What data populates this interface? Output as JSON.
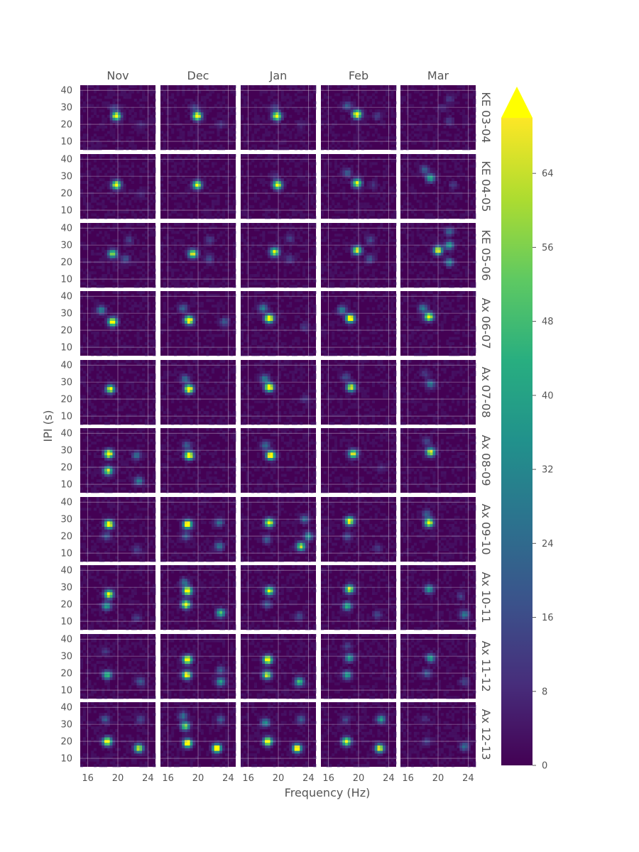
{
  "chart_data": {
    "type": "heatmap",
    "layout": "small-multiples grid",
    "xlabel": "Frequency (Hz)",
    "ylabel": "IPI (s)",
    "columns": [
      "Nov",
      "Dec",
      "Jan",
      "Feb",
      "Mar"
    ],
    "rows": [
      "KE 03-04",
      "KE 04-05",
      "KE 05-06",
      "Ax 06-07",
      "Ax 07-08",
      "Ax 08-09",
      "Ax 09-10",
      "Ax 10-11",
      "Ax 11-12",
      "Ax 12-13"
    ],
    "xlim": [
      15,
      25
    ],
    "ylim": [
      5,
      43
    ],
    "xticks": [
      16,
      20,
      24
    ],
    "yticks": [
      10,
      20,
      30,
      40
    ],
    "grid": true,
    "colormap": "viridis",
    "colorbar": {
      "min": 0,
      "max": 70,
      "extend": "max",
      "ticks": [
        0,
        8,
        16,
        24,
        32,
        40,
        48,
        56,
        64
      ],
      "extend_color": "#ffff00"
    },
    "colors": {
      "background": "#440154",
      "high": "#fde725",
      "saturated": "#ffff00",
      "text": "#555555"
    },
    "hotspots": [
      [
        [
          {
            "f": 19.8,
            "ipi": 25,
            "v": 80
          },
          {
            "f": 19.5,
            "ipi": 30,
            "v": 12
          },
          {
            "f": 23,
            "ipi": 20,
            "v": 6
          }
        ],
        [
          {
            "f": 19.9,
            "ipi": 25,
            "v": 85
          },
          {
            "f": 19.5,
            "ipi": 30,
            "v": 12
          },
          {
            "f": 23,
            "ipi": 20,
            "v": 8
          }
        ],
        [
          {
            "f": 19.8,
            "ipi": 25,
            "v": 80
          },
          {
            "f": 19.5,
            "ipi": 30,
            "v": 12
          },
          {
            "f": 23,
            "ipi": 20,
            "v": 6
          }
        ],
        [
          {
            "f": 19.8,
            "ipi": 26,
            "v": 85
          },
          {
            "f": 18.5,
            "ipi": 31,
            "v": 20
          },
          {
            "f": 22.5,
            "ipi": 25,
            "v": 12
          }
        ],
        [
          {
            "f": 21.5,
            "ipi": 35,
            "v": 10
          },
          {
            "f": 21.5,
            "ipi": 22,
            "v": 10
          },
          {
            "f": 20.5,
            "ipi": 30,
            "v": 6
          }
        ]
      ],
      [
        [
          {
            "f": 19.8,
            "ipi": 25,
            "v": 80
          },
          {
            "f": 23,
            "ipi": 20,
            "v": 5
          }
        ],
        [
          {
            "f": 19.9,
            "ipi": 25,
            "v": 72
          }
        ],
        [
          {
            "f": 19.9,
            "ipi": 25,
            "v": 78
          },
          {
            "f": 19.5,
            "ipi": 30,
            "v": 8
          }
        ],
        [
          {
            "f": 19.8,
            "ipi": 26,
            "v": 72
          },
          {
            "f": 18.5,
            "ipi": 32,
            "v": 20
          },
          {
            "f": 22,
            "ipi": 25,
            "v": 8
          }
        ],
        [
          {
            "f": 19,
            "ipi": 29,
            "v": 45
          },
          {
            "f": 18.2,
            "ipi": 34,
            "v": 20
          },
          {
            "f": 22,
            "ipi": 25,
            "v": 10
          }
        ]
      ],
      [
        [
          {
            "f": 19.3,
            "ipi": 25,
            "v": 60
          },
          {
            "f": 21,
            "ipi": 22,
            "v": 18
          },
          {
            "f": 21.5,
            "ipi": 33,
            "v": 12
          }
        ],
        [
          {
            "f": 19.3,
            "ipi": 25,
            "v": 72
          },
          {
            "f": 21.5,
            "ipi": 22,
            "v": 14
          },
          {
            "f": 21.5,
            "ipi": 33,
            "v": 12
          }
        ],
        [
          {
            "f": 19.5,
            "ipi": 26,
            "v": 72
          },
          {
            "f": 21.5,
            "ipi": 22,
            "v": 12
          },
          {
            "f": 21.5,
            "ipi": 34,
            "v": 12
          }
        ],
        [
          {
            "f": 19.8,
            "ipi": 27,
            "v": 72
          },
          {
            "f": 21.5,
            "ipi": 22,
            "v": 18
          },
          {
            "f": 21.5,
            "ipi": 33,
            "v": 14
          }
        ],
        [
          {
            "f": 20,
            "ipi": 27,
            "v": 75
          },
          {
            "f": 21.5,
            "ipi": 30,
            "v": 40
          },
          {
            "f": 21.5,
            "ipi": 20,
            "v": 30
          },
          {
            "f": 21.5,
            "ipi": 38,
            "v": 22
          }
        ]
      ],
      [
        [
          {
            "f": 19.3,
            "ipi": 25,
            "v": 85
          },
          {
            "f": 17.8,
            "ipi": 32,
            "v": 30
          }
        ],
        [
          {
            "f": 18.8,
            "ipi": 26,
            "v": 90
          },
          {
            "f": 18,
            "ipi": 33,
            "v": 22
          },
          {
            "f": 23.5,
            "ipi": 25,
            "v": 20
          }
        ],
        [
          {
            "f": 18.8,
            "ipi": 27,
            "v": 90
          },
          {
            "f": 18,
            "ipi": 33,
            "v": 30
          },
          {
            "f": 23.5,
            "ipi": 22,
            "v": 10
          }
        ],
        [
          {
            "f": 18.9,
            "ipi": 27,
            "v": 88
          },
          {
            "f": 17.8,
            "ipi": 32,
            "v": 30
          }
        ],
        [
          {
            "f": 18.8,
            "ipi": 28,
            "v": 80
          },
          {
            "f": 18,
            "ipi": 33,
            "v": 30
          }
        ]
      ],
      [
        [
          {
            "f": 19,
            "ipi": 26,
            "v": 72
          }
        ],
        [
          {
            "f": 18.8,
            "ipi": 26,
            "v": 90
          },
          {
            "f": 18.3,
            "ipi": 32,
            "v": 25
          }
        ],
        [
          {
            "f": 18.8,
            "ipi": 27,
            "v": 90
          },
          {
            "f": 18.2,
            "ipi": 32,
            "v": 30
          },
          {
            "f": 23.5,
            "ipi": 20,
            "v": 10
          }
        ],
        [
          {
            "f": 19,
            "ipi": 27,
            "v": 72
          },
          {
            "f": 18.3,
            "ipi": 33,
            "v": 16
          }
        ],
        [
          {
            "f": 19,
            "ipi": 29,
            "v": 28
          },
          {
            "f": 18.3,
            "ipi": 35,
            "v": 10
          }
        ]
      ],
      [
        [
          {
            "f": 18.8,
            "ipi": 28,
            "v": 88
          },
          {
            "f": 18.7,
            "ipi": 18,
            "v": 70
          },
          {
            "f": 22.5,
            "ipi": 27,
            "v": 25
          },
          {
            "f": 22.8,
            "ipi": 12,
            "v": 30
          }
        ],
        [
          {
            "f": 18.8,
            "ipi": 27,
            "v": 90
          },
          {
            "f": 18.5,
            "ipi": 33,
            "v": 20
          }
        ],
        [
          {
            "f": 19,
            "ipi": 27,
            "v": 90
          },
          {
            "f": 18.3,
            "ipi": 33,
            "v": 25
          }
        ],
        [
          {
            "f": 19.3,
            "ipi": 28,
            "v": 72
          },
          {
            "f": 23,
            "ipi": 20,
            "v": 8
          }
        ],
        [
          {
            "f": 19,
            "ipi": 29,
            "v": 72
          },
          {
            "f": 18.5,
            "ipi": 35,
            "v": 14
          }
        ]
      ],
      [
        [
          {
            "f": 18.8,
            "ipi": 27,
            "v": 88
          },
          {
            "f": 18.5,
            "ipi": 20,
            "v": 18
          },
          {
            "f": 22.5,
            "ipi": 12,
            "v": 12
          }
        ],
        [
          {
            "f": 18.6,
            "ipi": 27,
            "v": 90
          },
          {
            "f": 22.8,
            "ipi": 28,
            "v": 25
          },
          {
            "f": 22.8,
            "ipi": 14,
            "v": 28
          },
          {
            "f": 18.4,
            "ipi": 20,
            "v": 20
          }
        ],
        [
          {
            "f": 18.8,
            "ipi": 28,
            "v": 80
          },
          {
            "f": 23.5,
            "ipi": 30,
            "v": 25
          },
          {
            "f": 24,
            "ipi": 20,
            "v": 35
          },
          {
            "f": 23,
            "ipi": 14,
            "v": 65
          },
          {
            "f": 18.5,
            "ipi": 18,
            "v": 20
          }
        ],
        [
          {
            "f": 18.8,
            "ipi": 29,
            "v": 80
          },
          {
            "f": 18.5,
            "ipi": 20,
            "v": 16
          },
          {
            "f": 22.5,
            "ipi": 13,
            "v": 10
          }
        ],
        [
          {
            "f": 18.8,
            "ipi": 28,
            "v": 80
          },
          {
            "f": 18.5,
            "ipi": 33,
            "v": 20
          }
        ]
      ],
      [
        [
          {
            "f": 18.8,
            "ipi": 26,
            "v": 75
          },
          {
            "f": 18.5,
            "ipi": 19,
            "v": 40
          },
          {
            "f": 22.5,
            "ipi": 12,
            "v": 12
          }
        ],
        [
          {
            "f": 18.6,
            "ipi": 28,
            "v": 90
          },
          {
            "f": 18.4,
            "ipi": 20,
            "v": 80
          },
          {
            "f": 18.2,
            "ipi": 33,
            "v": 25
          },
          {
            "f": 23,
            "ipi": 15,
            "v": 50
          }
        ],
        [
          {
            "f": 18.8,
            "ipi": 28,
            "v": 72
          },
          {
            "f": 18.5,
            "ipi": 20,
            "v": 20
          },
          {
            "f": 22.8,
            "ipi": 13,
            "v": 14
          }
        ],
        [
          {
            "f": 18.8,
            "ipi": 29,
            "v": 72
          },
          {
            "f": 18.5,
            "ipi": 19,
            "v": 45
          },
          {
            "f": 22.5,
            "ipi": 14,
            "v": 14
          }
        ],
        [
          {
            "f": 18.8,
            "ipi": 29,
            "v": 40
          },
          {
            "f": 23.5,
            "ipi": 14,
            "v": 30
          },
          {
            "f": 23,
            "ipi": 25,
            "v": 12
          }
        ]
      ],
      [
        [
          {
            "f": 18.6,
            "ipi": 19,
            "v": 50
          },
          {
            "f": 18.3,
            "ipi": 33,
            "v": 10
          },
          {
            "f": 23,
            "ipi": 15,
            "v": 20
          }
        ],
        [
          {
            "f": 18.6,
            "ipi": 28,
            "v": 90
          },
          {
            "f": 18.5,
            "ipi": 19,
            "v": 80
          },
          {
            "f": 23,
            "ipi": 15,
            "v": 40
          },
          {
            "f": 23,
            "ipi": 22,
            "v": 20
          }
        ],
        [
          {
            "f": 18.6,
            "ipi": 28,
            "v": 90
          },
          {
            "f": 18.5,
            "ipi": 19,
            "v": 70
          },
          {
            "f": 22.8,
            "ipi": 15,
            "v": 50
          }
        ],
        [
          {
            "f": 18.8,
            "ipi": 29,
            "v": 40
          },
          {
            "f": 18.5,
            "ipi": 19,
            "v": 40
          },
          {
            "f": 18.5,
            "ipi": 36,
            "v": 12
          }
        ],
        [
          {
            "f": 19,
            "ipi": 29,
            "v": 40
          },
          {
            "f": 18.5,
            "ipi": 20,
            "v": 20
          },
          {
            "f": 23.5,
            "ipi": 15,
            "v": 14
          }
        ]
      ],
      [
        [
          {
            "f": 18.6,
            "ipi": 20,
            "v": 85
          },
          {
            "f": 18.3,
            "ipi": 33,
            "v": 20
          },
          {
            "f": 22.8,
            "ipi": 16,
            "v": 70
          },
          {
            "f": 23,
            "ipi": 33,
            "v": 14
          }
        ],
        [
          {
            "f": 18.6,
            "ipi": 19,
            "v": 90
          },
          {
            "f": 18.3,
            "ipi": 29,
            "v": 60
          },
          {
            "f": 18,
            "ipi": 35,
            "v": 25
          },
          {
            "f": 22.5,
            "ipi": 16,
            "v": 90
          },
          {
            "f": 23,
            "ipi": 33,
            "v": 20
          }
        ],
        [
          {
            "f": 18.6,
            "ipi": 20,
            "v": 88
          },
          {
            "f": 18.3,
            "ipi": 31,
            "v": 35
          },
          {
            "f": 22.5,
            "ipi": 16,
            "v": 85
          },
          {
            "f": 23,
            "ipi": 33,
            "v": 20
          }
        ],
        [
          {
            "f": 18.4,
            "ipi": 20,
            "v": 75
          },
          {
            "f": 18.3,
            "ipi": 33,
            "v": 14
          },
          {
            "f": 22.8,
            "ipi": 16,
            "v": 75
          },
          {
            "f": 23,
            "ipi": 33,
            "v": 40
          }
        ],
        [
          {
            "f": 18.5,
            "ipi": 20,
            "v": 14
          },
          {
            "f": 18.3,
            "ipi": 33,
            "v": 8
          },
          {
            "f": 23.5,
            "ipi": 17,
            "v": 25
          }
        ]
      ]
    ]
  }
}
